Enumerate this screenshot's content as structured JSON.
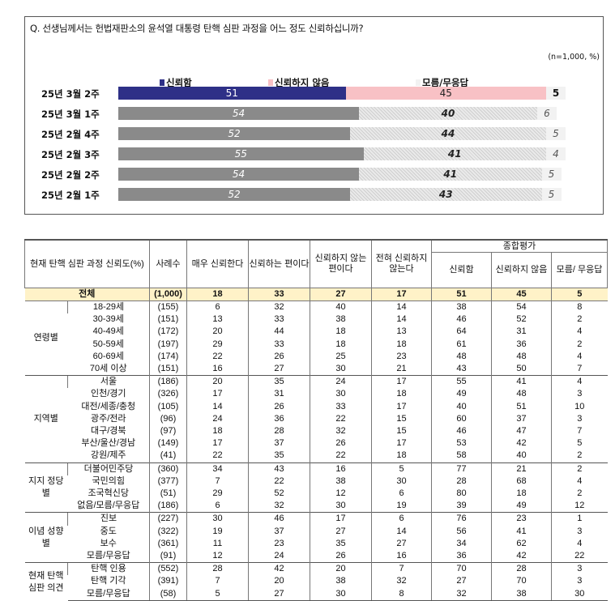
{
  "question": "Q. 선생님께서는 헌법재판소의 윤석열 대통령 탄핵 심판 과정을 어느 정도 신뢰하십니까?",
  "unit_note": "(n=1,000, %)",
  "chart_data": {
    "type": "bar",
    "stacked": true,
    "orientation": "horizontal",
    "categories": [
      "25년 3월 2주",
      "25년 3월 1주",
      "25년 2월 4주",
      "25년 2월 3주",
      "25년 2월 2주",
      "25년 2월 1주"
    ],
    "series": [
      {
        "name": "신뢰함",
        "values": [
          51,
          54,
          52,
          55,
          54,
          52
        ],
        "color": "#2e3087"
      },
      {
        "name": "신뢰하지 않음",
        "values": [
          45,
          40,
          44,
          41,
          41,
          43
        ],
        "color": "#f8c1c5"
      },
      {
        "name": "모름/무응답",
        "values": [
          5,
          6,
          5,
          4,
          5,
          5
        ],
        "color": "#f2f2f2"
      }
    ],
    "highlight_category": "25년 3월 2주",
    "legend": "top"
  },
  "table": {
    "header": {
      "title": "현재 탄핵 심판 과정 신뢰도(%)",
      "sample": "사례수",
      "cols": [
        "매우 신뢰한다",
        "신뢰하는 편이다",
        "신뢰하지 않는 편이다",
        "전혀 신뢰하지 않는다"
      ],
      "summary_group": "종합평가",
      "summary_cols": [
        "신뢰함",
        "신뢰하지 않음",
        "모름/ 무응답"
      ]
    },
    "total": {
      "label": "전체",
      "n": "(1,000)",
      "values": [
        "18",
        "33",
        "27",
        "17",
        "51",
        "45",
        "5"
      ]
    },
    "groups": [
      {
        "name": "연령별",
        "rows": [
          {
            "label": "18-29세",
            "n": "(155)",
            "values": [
              "6",
              "32",
              "40",
              "14",
              "38",
              "54",
              "8"
            ]
          },
          {
            "label": "30-39세",
            "n": "(151)",
            "values": [
              "13",
              "33",
              "38",
              "14",
              "46",
              "52",
              "2"
            ]
          },
          {
            "label": "40-49세",
            "n": "(172)",
            "values": [
              "20",
              "44",
              "18",
              "13",
              "64",
              "31",
              "4"
            ]
          },
          {
            "label": "50-59세",
            "n": "(197)",
            "values": [
              "29",
              "33",
              "18",
              "18",
              "61",
              "36",
              "2"
            ]
          },
          {
            "label": "60-69세",
            "n": "(174)",
            "values": [
              "22",
              "26",
              "25",
              "23",
              "48",
              "48",
              "4"
            ]
          },
          {
            "label": "70세 이상",
            "n": "(151)",
            "values": [
              "16",
              "27",
              "30",
              "21",
              "43",
              "50",
              "7"
            ]
          }
        ]
      },
      {
        "name": "지역별",
        "rows": [
          {
            "label": "서울",
            "n": "(186)",
            "values": [
              "20",
              "35",
              "24",
              "17",
              "55",
              "41",
              "4"
            ]
          },
          {
            "label": "인천/경기",
            "n": "(326)",
            "values": [
              "17",
              "31",
              "30",
              "18",
              "49",
              "48",
              "3"
            ]
          },
          {
            "label": "대전/세종/충청",
            "n": "(105)",
            "values": [
              "14",
              "26",
              "33",
              "17",
              "40",
              "51",
              "10"
            ]
          },
          {
            "label": "광주/전라",
            "n": "(96)",
            "values": [
              "24",
              "36",
              "22",
              "15",
              "60",
              "37",
              "3"
            ]
          },
          {
            "label": "대구/경북",
            "n": "(97)",
            "values": [
              "18",
              "28",
              "32",
              "15",
              "46",
              "47",
              "7"
            ]
          },
          {
            "label": "부산/울산/경남",
            "n": "(149)",
            "values": [
              "17",
              "37",
              "26",
              "17",
              "53",
              "42",
              "5"
            ]
          },
          {
            "label": "강원/제주",
            "n": "(41)",
            "values": [
              "22",
              "35",
              "22",
              "18",
              "58",
              "40",
              "2"
            ]
          }
        ]
      },
      {
        "name": "지지 정당별",
        "rows": [
          {
            "label": "더불어민주당",
            "n": "(360)",
            "values": [
              "34",
              "43",
              "16",
              "5",
              "77",
              "21",
              "2"
            ]
          },
          {
            "label": "국민의힘",
            "n": "(377)",
            "values": [
              "7",
              "22",
              "38",
              "30",
              "28",
              "68",
              "4"
            ]
          },
          {
            "label": "조국혁신당",
            "n": "(51)",
            "values": [
              "29",
              "52",
              "12",
              "6",
              "80",
              "18",
              "2"
            ]
          },
          {
            "label": "없음/모름/무응답",
            "n": "(186)",
            "values": [
              "6",
              "32",
              "30",
              "19",
              "39",
              "49",
              "12"
            ]
          }
        ]
      },
      {
        "name": "이념 성향별",
        "rows": [
          {
            "label": "진보",
            "n": "(227)",
            "values": [
              "30",
              "46",
              "17",
              "6",
              "76",
              "23",
              "1"
            ]
          },
          {
            "label": "중도",
            "n": "(322)",
            "values": [
              "19",
              "37",
              "27",
              "14",
              "56",
              "41",
              "3"
            ]
          },
          {
            "label": "보수",
            "n": "(361)",
            "values": [
              "11",
              "23",
              "35",
              "27",
              "34",
              "62",
              "4"
            ]
          },
          {
            "label": "모름/무응답",
            "n": "(91)",
            "values": [
              "12",
              "24",
              "26",
              "16",
              "36",
              "42",
              "22"
            ]
          }
        ]
      },
      {
        "name": "현재 탄핵 심판 의견",
        "rows": [
          {
            "label": "탄핵 인용",
            "n": "(552)",
            "values": [
              "28",
              "42",
              "20",
              "7",
              "70",
              "28",
              "3"
            ]
          },
          {
            "label": "탄핵 기각",
            "n": "(391)",
            "values": [
              "7",
              "20",
              "38",
              "32",
              "27",
              "70",
              "3"
            ]
          },
          {
            "label": "모름/무응답",
            "n": "(58)",
            "values": [
              "5",
              "27",
              "30",
              "8",
              "32",
              "38",
              "30"
            ]
          }
        ]
      }
    ]
  }
}
